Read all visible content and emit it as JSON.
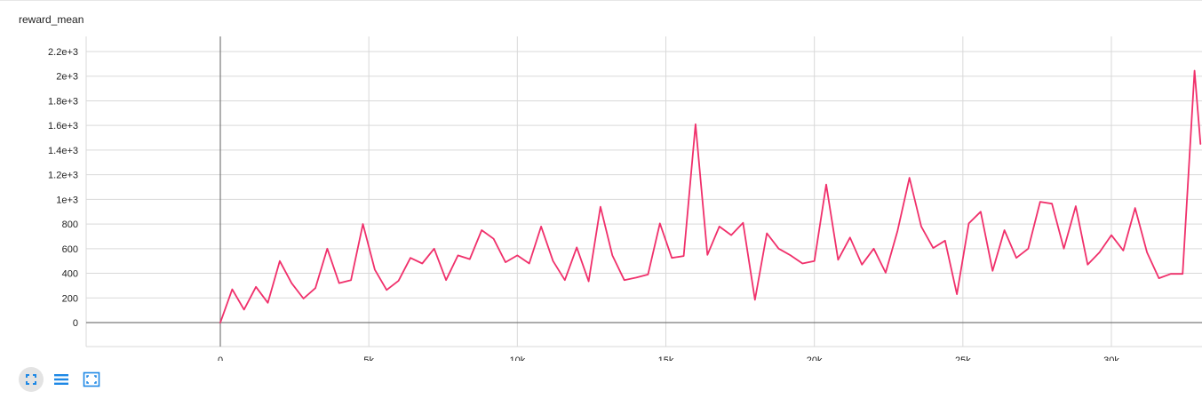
{
  "title": "reward_mean",
  "toolbar": {
    "buttons": [
      {
        "name": "expand-chart-icon"
      },
      {
        "name": "toggle-log-scale-icon"
      },
      {
        "name": "fit-domain-icon"
      }
    ]
  },
  "colors": {
    "series": "#f0306b",
    "grid": "#d9d9d9",
    "axis": "#7a7a7a",
    "tick_text": "#212121",
    "toolbar_icon": "#1e88e5"
  },
  "chart_data": {
    "type": "line",
    "title": "reward_mean",
    "xlabel": "",
    "ylabel": "",
    "xlim": [
      -4500,
      33000
    ],
    "ylim": [
      -200,
      2300
    ],
    "x_ticks": [
      0,
      5000,
      10000,
      15000,
      20000,
      25000,
      30000
    ],
    "x_tick_labels": [
      "0",
      "5k",
      "10k",
      "15k",
      "20k",
      "25k",
      "30k"
    ],
    "y_ticks": [
      0,
      200,
      400,
      600,
      800,
      1000,
      1200,
      1400,
      1600,
      1800,
      2000,
      2200
    ],
    "y_tick_labels": [
      "0",
      "200",
      "400",
      "600",
      "800",
      "1e+3",
      "1.2e+3",
      "1.4e+3",
      "1.6e+3",
      "1.8e+3",
      "2e+3",
      "2.2e+3"
    ],
    "grid": true,
    "series": [
      {
        "x": [
          0,
          400,
          800,
          1200,
          1600,
          2000,
          2400,
          2800,
          3200,
          3600,
          4000,
          4400,
          4800,
          5200,
          5600,
          6000,
          6400,
          6800,
          7200,
          7600,
          8000,
          8400,
          8800,
          9200,
          9600,
          10000,
          10400,
          10800,
          11200,
          11600,
          12000,
          12400,
          12800,
          13200,
          13600,
          14000,
          14400,
          14800,
          15200,
          15600,
          16000,
          16400,
          16800,
          17200,
          17600,
          18000,
          18400,
          18800,
          19200,
          19600,
          20000,
          20400,
          20800,
          21200,
          21600,
          22000,
          22400,
          22800,
          23200,
          23600,
          24000,
          24400,
          24800,
          25200,
          25600,
          26000,
          26400,
          26800,
          27200,
          27600,
          28000,
          28400,
          28800,
          29200,
          29600,
          30000,
          30400,
          30800,
          31200,
          31600,
          32000,
          32400,
          32800,
          33000
        ],
        "values": [
          0,
          270,
          105,
          290,
          160,
          500,
          320,
          195,
          280,
          600,
          320,
          345,
          800,
          430,
          265,
          340,
          525,
          480,
          600,
          345,
          545,
          515,
          750,
          680,
          490,
          545,
          480,
          780,
          500,
          345,
          610,
          335,
          940,
          545,
          345,
          365,
          390,
          805,
          525,
          540,
          1610,
          550,
          780,
          710,
          810,
          185,
          725,
          600,
          545,
          480,
          500,
          1120,
          510,
          690,
          470,
          600,
          405,
          745,
          1175,
          780,
          605,
          665,
          230,
          805,
          900,
          420,
          750,
          525,
          600,
          980,
          965,
          600,
          945,
          470,
          570,
          710,
          585,
          930,
          570,
          360,
          395,
          395,
          2045,
          1450
        ]
      }
    ]
  }
}
